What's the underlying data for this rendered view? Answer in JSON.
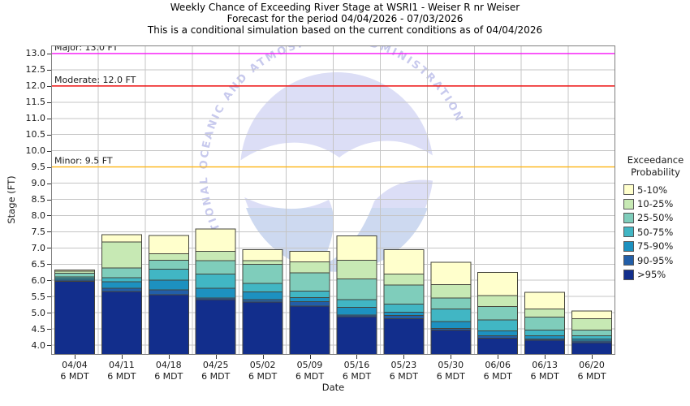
{
  "chart": {
    "title": "Weekly Chance of Exceeding River Stage at WSRI1 - Weiser R nr Weiser",
    "subtitle": "Forecast for the period 04/04/2026 - 07/03/2026",
    "note": "This is a conditional simulation based on the current conditions as of 04/04/2026",
    "ylabel": "Stage (FT)",
    "xlabel": "Date"
  },
  "watermark": {
    "logo_text": "NOAA",
    "ring_text": "NATIONAL OCEANIC AND ATMOSPHERIC ADMINISTRATION"
  },
  "chart_data": {
    "type": "stacked-bar",
    "title": "Weekly Chance of Exceeding River Stage at WSRI1 - Weiser R nr Weiser",
    "xlabel": "Date",
    "ylabel": "Stage (FT)",
    "ylim": [
      3.7,
      13.25
    ],
    "ytick_min": 4.0,
    "ytick_max": 13.0,
    "ytick_step": 0.5,
    "grid": true,
    "base_value": 3.7,
    "category_sublabel": "6 MDT",
    "stack_order_bottom_to_top": [
      ">95%",
      "90-95%",
      "75-90%",
      "50-75%",
      "25-50%",
      "10-25%",
      "5-10%"
    ],
    "colors_bottom_to_top": [
      "#122e8c",
      "#225ea8",
      "#1d91c0",
      "#41b6c4",
      "#7fcdbb",
      "#c7e9b4",
      "#ffffcc"
    ],
    "bars": [
      {
        "date": "04/04",
        "time": "6 MDT",
        "tops": [
          5.97,
          6.01,
          6.06,
          6.11,
          6.22,
          6.28,
          6.32
        ]
      },
      {
        "date": "04/11",
        "time": "6 MDT",
        "tops": [
          5.66,
          5.76,
          5.95,
          6.08,
          6.38,
          7.18,
          7.41
        ]
      },
      {
        "date": "04/18",
        "time": "6 MDT",
        "tops": [
          5.55,
          5.71,
          6.0,
          6.34,
          6.62,
          6.82,
          7.38
        ]
      },
      {
        "date": "04/25",
        "time": "6 MDT",
        "tops": [
          5.4,
          5.46,
          5.76,
          6.19,
          6.61,
          6.89,
          7.59
        ]
      },
      {
        "date": "05/02",
        "time": "6 MDT",
        "tops": [
          5.33,
          5.4,
          5.64,
          5.9,
          6.5,
          6.61,
          6.94
        ]
      },
      {
        "date": "05/09",
        "time": "6 MDT",
        "tops": [
          5.21,
          5.34,
          5.47,
          5.67,
          6.23,
          6.57,
          6.89
        ]
      },
      {
        "date": "05/16",
        "time": "6 MDT",
        "tops": [
          4.88,
          4.93,
          5.17,
          5.4,
          6.04,
          6.62,
          7.37
        ]
      },
      {
        "date": "05/23",
        "time": "6 MDT",
        "tops": [
          4.81,
          4.91,
          5.02,
          5.27,
          5.85,
          6.19,
          6.94
        ]
      },
      {
        "date": "05/30",
        "time": "6 MDT",
        "tops": [
          4.46,
          4.51,
          4.73,
          5.11,
          5.46,
          5.87,
          6.56
        ]
      },
      {
        "date": "06/06",
        "time": "6 MDT",
        "tops": [
          4.21,
          4.29,
          4.44,
          4.78,
          5.19,
          5.53,
          6.25
        ]
      },
      {
        "date": "06/13",
        "time": "6 MDT",
        "tops": [
          4.15,
          4.19,
          4.29,
          4.46,
          4.86,
          5.11,
          5.63
        ]
      },
      {
        "date": "06/20",
        "time": "6 MDT",
        "tops": [
          4.08,
          4.13,
          4.19,
          4.29,
          4.46,
          4.81,
          5.05
        ]
      }
    ],
    "thresholds": [
      {
        "name": "Major",
        "label": "Major: 13.0 FT",
        "value": 13.0,
        "color": "#f712f7"
      },
      {
        "name": "Moderate",
        "label": "Moderate: 12.0 FT",
        "value": 12.0,
        "color": "#ee1111"
      },
      {
        "name": "Minor",
        "label": "Minor: 9.5 FT",
        "value": 9.5,
        "color": "#fdb515"
      }
    ],
    "legend": {
      "title_lines": [
        "Exceedance",
        "Probability"
      ],
      "position": "right",
      "entries": [
        {
          "label": "5-10%",
          "color": "#ffffcc"
        },
        {
          "label": "10-25%",
          "color": "#c7e9b4"
        },
        {
          "label": "25-50%",
          "color": "#7fcdbb"
        },
        {
          "label": "50-75%",
          "color": "#41b6c4"
        },
        {
          "label": "75-90%",
          "color": "#1d91c0"
        },
        {
          "label": "90-95%",
          "color": "#225ea8"
        },
        {
          "label": ">95%",
          "color": "#122e8c"
        }
      ]
    },
    "style": {
      "grid_color": "#c5c5c5",
      "border_color": "#808080",
      "bar_outline_color": "#45453c"
    }
  }
}
